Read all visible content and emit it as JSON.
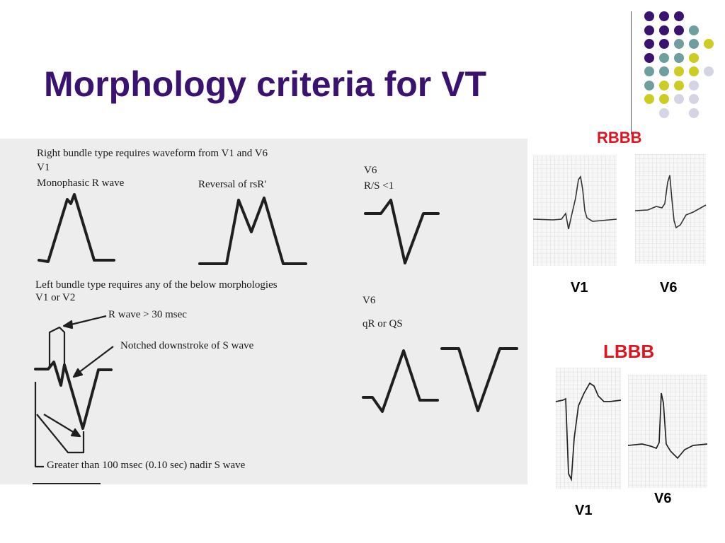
{
  "slide": {
    "title": "Morphology criteria for VT",
    "accent_color": "#3a1370",
    "dot_colors": [
      "#3a1370",
      "#6e9e9e",
      "#cccc22",
      "#d4d4e4"
    ]
  },
  "figure": {
    "rbbb_header": "Right bundle type requires waveform from V1 and V6",
    "rbbb_v1": "V1",
    "rbbb_v1_desc": "Monophasic R wave",
    "rbbb_reversal": "Reversal of rsR′",
    "rbbb_v6": "V6",
    "rbbb_v6_desc": "R/S  <1",
    "lbbb_header": "Left bundle type requires any of the below morphologies",
    "lbbb_leads": "V1 or V2",
    "lbbb_r_wave": "R wave > 30 msec",
    "lbbb_notched": "Notched downstroke of S wave",
    "lbbb_nadir": "Greater than 100 msec (0.10 sec) nadir S wave",
    "lbbb_v6": "V6",
    "lbbb_v6_desc": "qR or QS"
  },
  "examples": {
    "rbbb_label": "RBBB",
    "rbbb_v1": "V1",
    "rbbb_v6": "V6",
    "lbbb_label": "LBBB",
    "lbbb_v1": "V1",
    "lbbb_v6": "V6"
  }
}
